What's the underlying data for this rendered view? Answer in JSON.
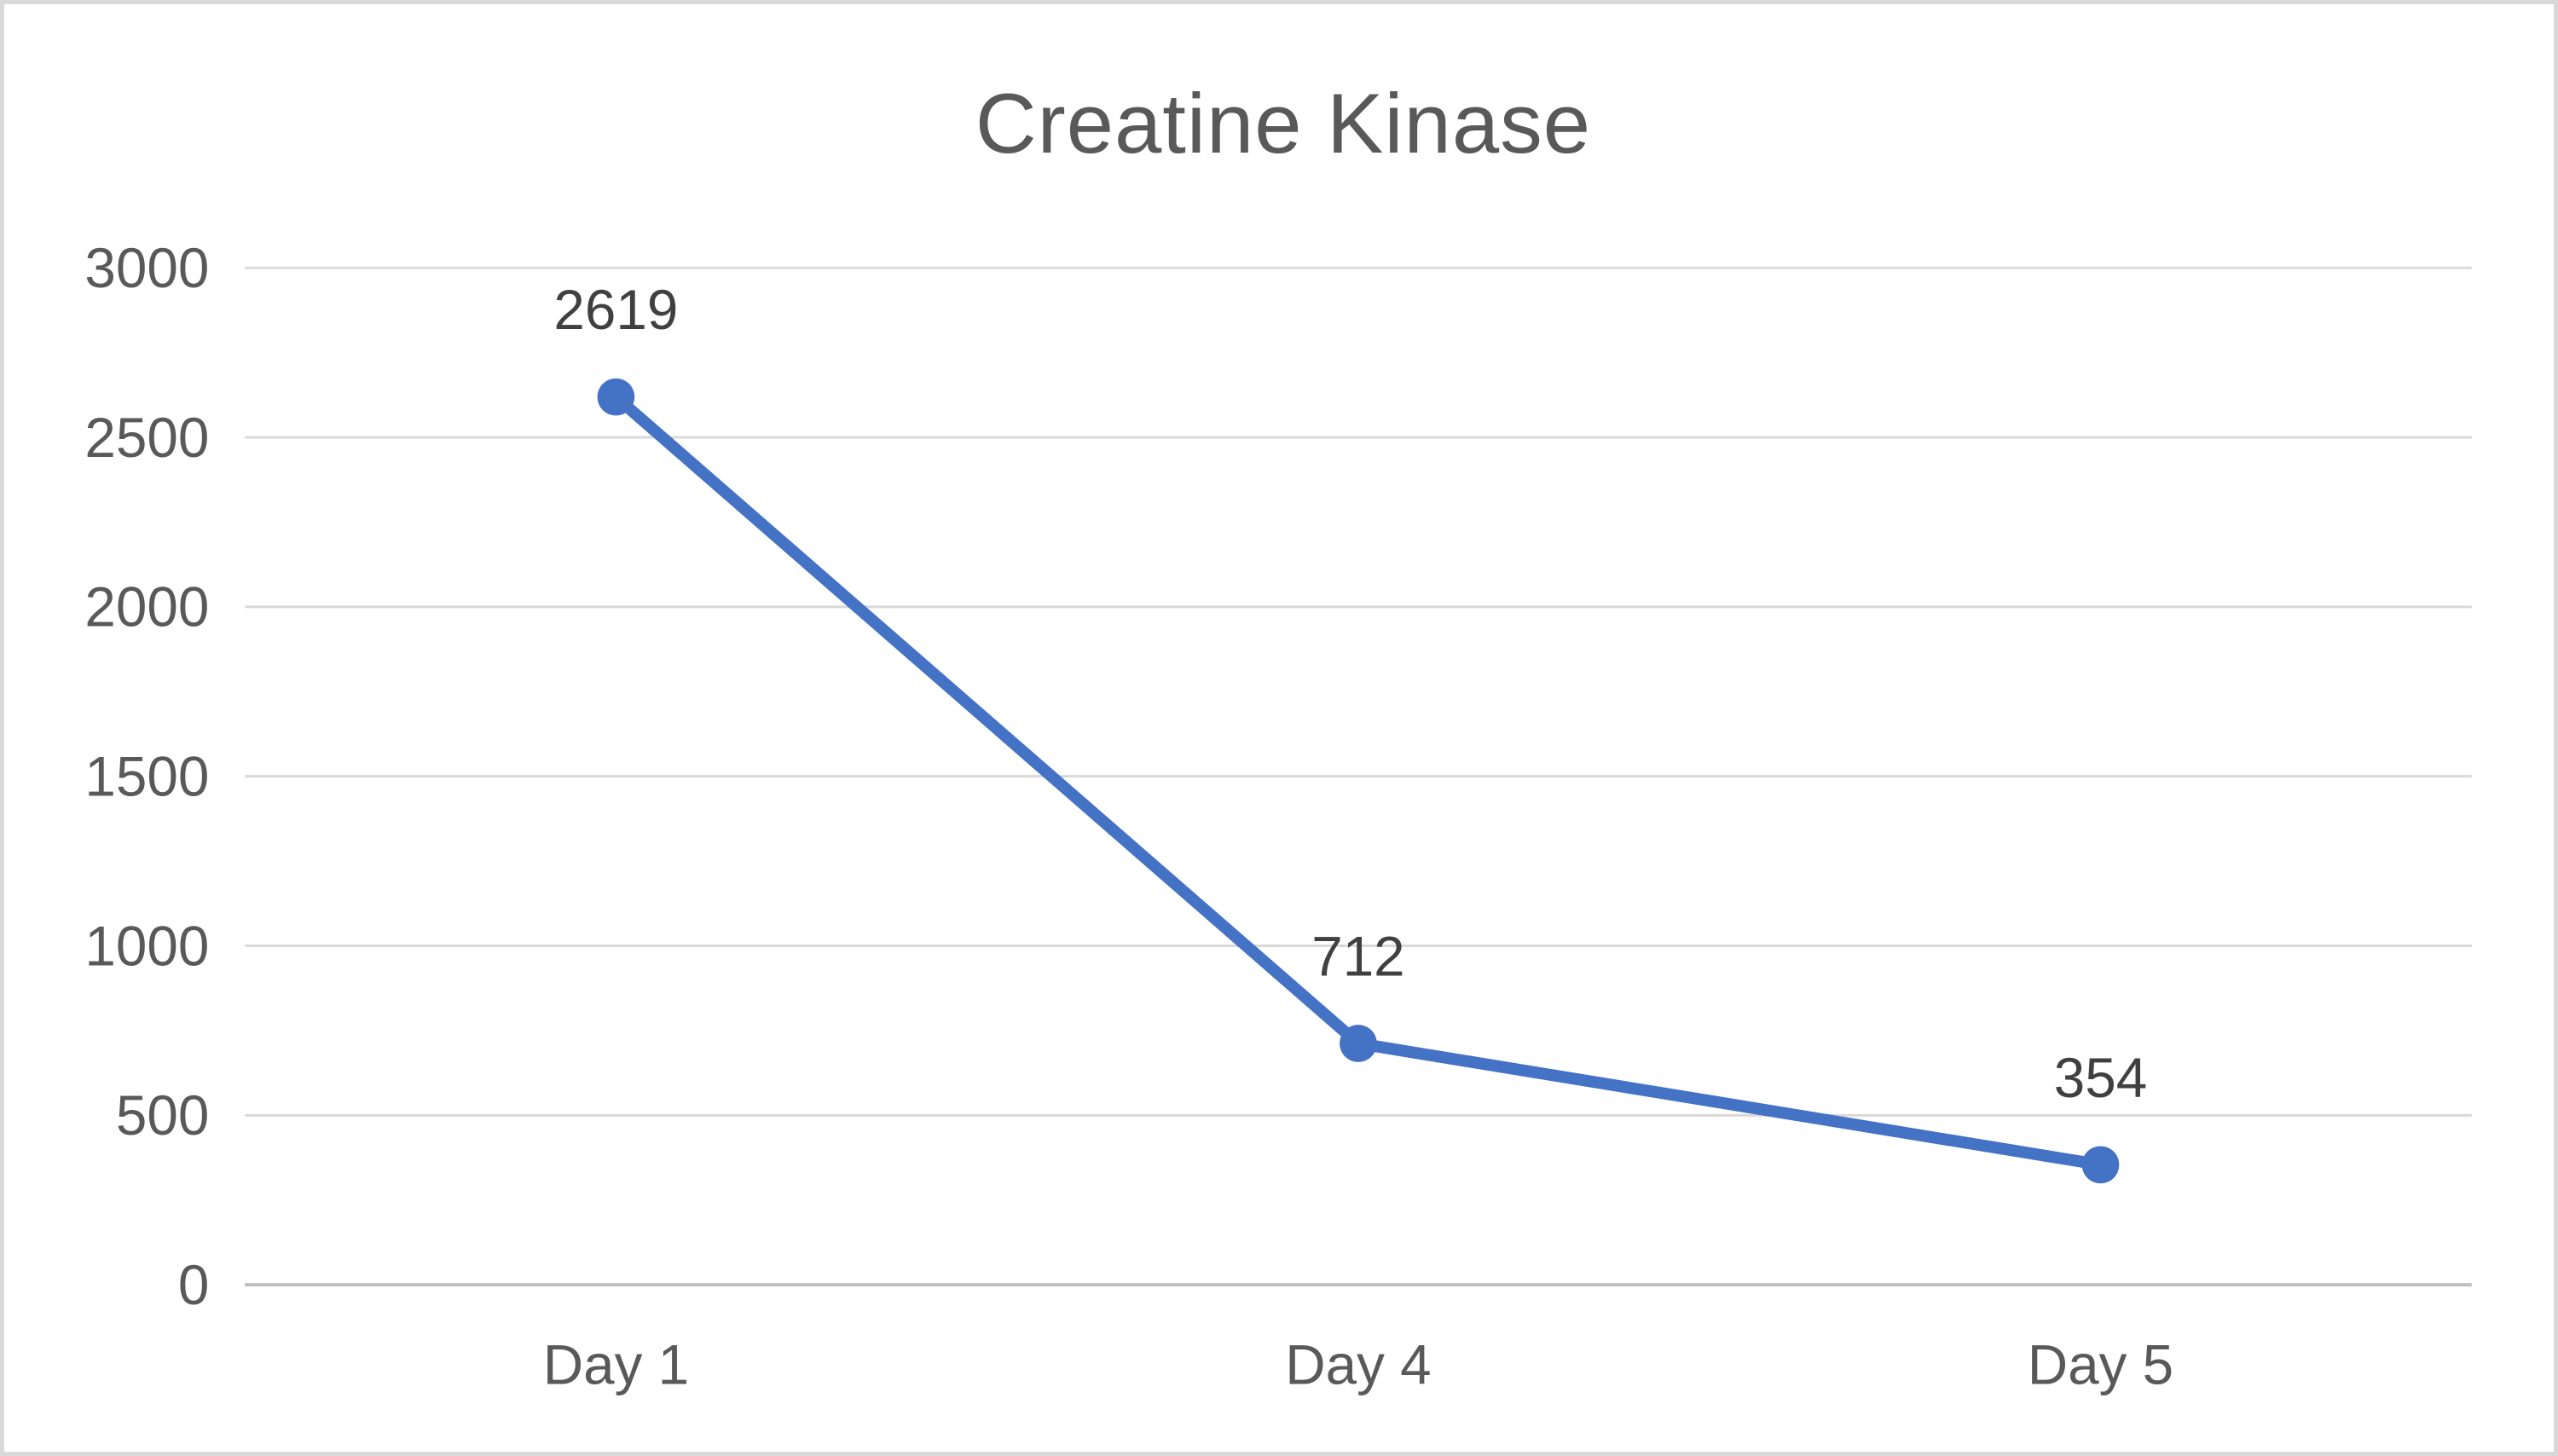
{
  "window": {
    "background_color": "#ffffff",
    "border_color": "#d9d9d9"
  },
  "chart_data": {
    "type": "line",
    "title": "Creatine Kinase",
    "categories": [
      "Day 1",
      "Day 4",
      "Day 5"
    ],
    "series": [
      {
        "name": "Creatine Kinase",
        "values": [
          2619,
          712,
          354
        ]
      }
    ],
    "data_labels": [
      "2619",
      "712",
      "354"
    ],
    "yticks": [
      0,
      500,
      1000,
      1500,
      2000,
      2500,
      3000
    ],
    "ytick_labels": [
      "0",
      "500",
      "1000",
      "1500",
      "2000",
      "2500",
      "3000"
    ],
    "ylim": [
      0,
      3000
    ],
    "xlabel": "",
    "ylabel": "",
    "grid": "horizontal",
    "legend_position": "none",
    "styles": {
      "line_color": "#4472C4",
      "marker_color": "#4472C4",
      "gridline_color": "#D9D9D9",
      "axis_line_color": "#BFBFBF",
      "tick_label_color": "#595959",
      "data_label_color": "#404040",
      "title_color": "#595959"
    }
  }
}
